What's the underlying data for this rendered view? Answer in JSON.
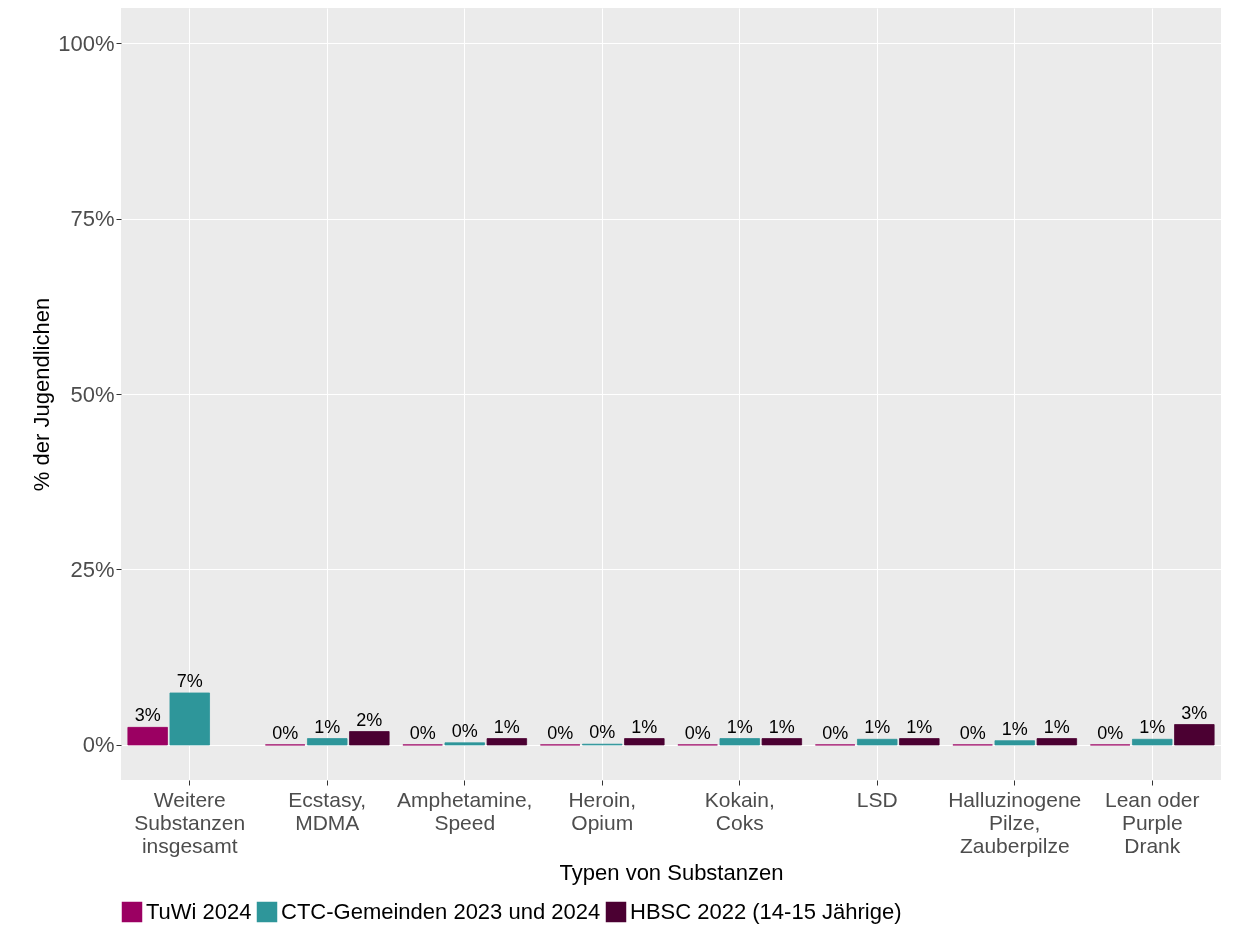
{
  "chart_data": {
    "type": "bar",
    "xlabel": "Typen von Substanzen",
    "ylabel": "% der Jugendlichen",
    "categories": [
      "Weitere Substanzen insgesamt",
      "Ecstasy, MDMA",
      "Amphetamine, Speed",
      "Heroin, Opium",
      "Kokain, Coks",
      "LSD",
      "Halluzinogene Pilze, Zauberpilze",
      "Lean oder Purple Drank"
    ],
    "series": [
      {
        "name": "TuWi 2024",
        "color": "#9b0062",
        "values": [
          2.5,
          0,
          0,
          0,
          0,
          0,
          0,
          0
        ],
        "value_labels": [
          "3%",
          "0%",
          "0%",
          "0%",
          "0%",
          "0%",
          "0%",
          "0%"
        ]
      },
      {
        "name": "CTC-Gemeinden 2023 und 2024",
        "color": "#2e969a",
        "values": [
          7.4,
          0.9,
          0.3,
          0.1,
          0.9,
          0.8,
          0.6,
          0.8
        ],
        "value_labels": [
          "7%",
          "1%",
          "0%",
          "0%",
          "1%",
          "1%",
          "1%",
          "1%"
        ]
      },
      {
        "name": "HBSC 2022 (14-15 Jährige)",
        "color": "#4b0032",
        "values": [
          null,
          1.9,
          0.9,
          0.9,
          0.9,
          0.9,
          0.9,
          2.9
        ],
        "value_labels": [
          null,
          "2%",
          "1%",
          "1%",
          "1%",
          "1%",
          "1%",
          "3%"
        ]
      }
    ],
    "ylim": [
      -5,
      105
    ],
    "yticks": [
      {
        "value": 0,
        "label": "0%"
      },
      {
        "value": 25,
        "label": "25%"
      },
      {
        "value": 50,
        "label": "50%"
      },
      {
        "value": 75,
        "label": "75%"
      },
      {
        "value": 100,
        "label": "100%"
      }
    ],
    "grid": true,
    "legend": "bottom"
  }
}
